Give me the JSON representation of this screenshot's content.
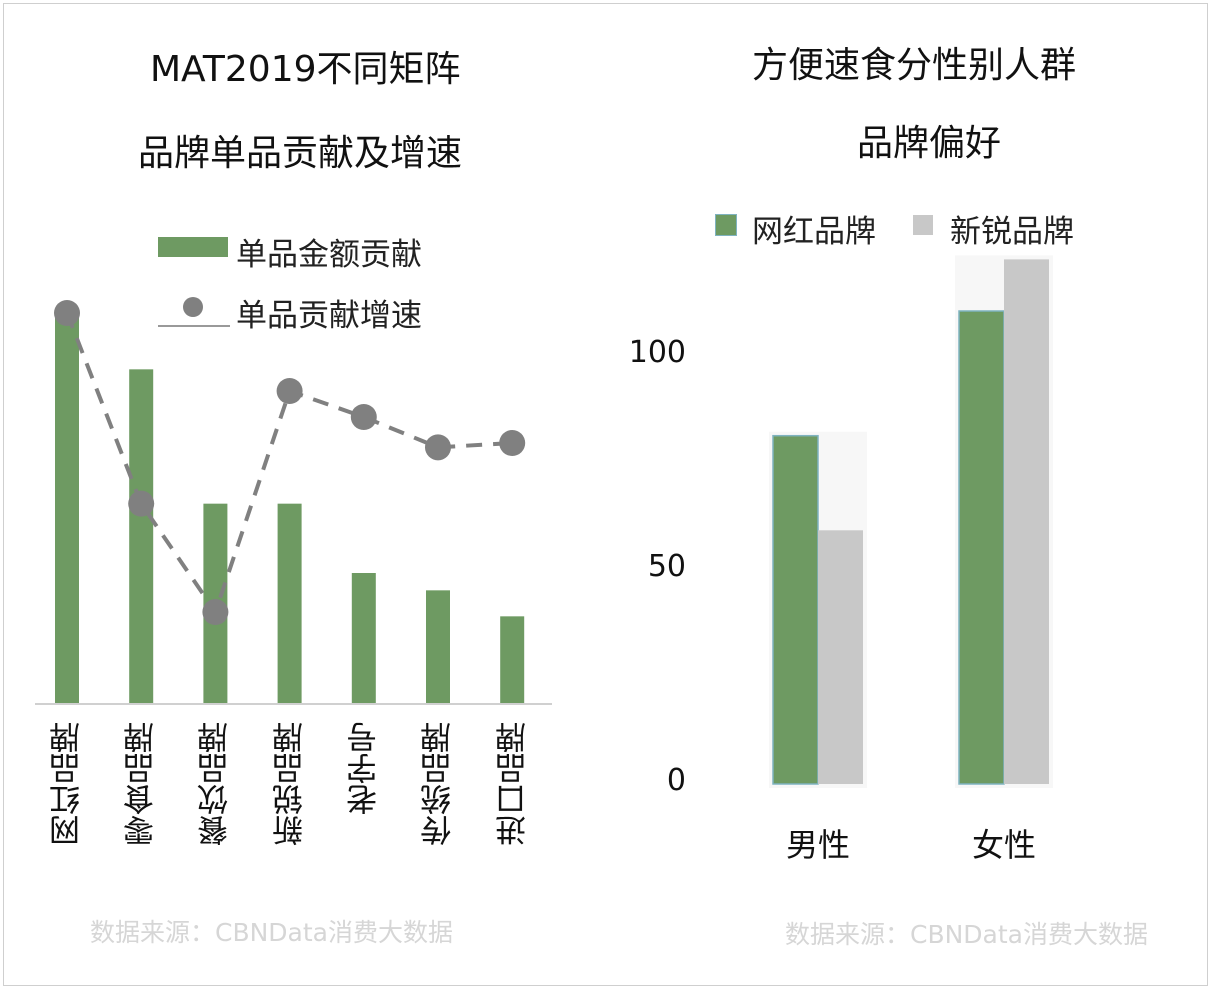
{
  "colors": {
    "green": "#6e9a62",
    "gray": "#c8c8c8",
    "dot": "#808080",
    "axis": "#d0d0d0"
  },
  "chart_data": [
    {
      "type": "bar",
      "title_line1": "MAT2019不同矩阵",
      "title_line2": "品牌单品贡献及增速",
      "categories": [
        "网红品牌",
        "零食品牌",
        "餐饮品牌",
        "新锐品牌",
        "老字号",
        "传统品牌",
        "进口品牌"
      ],
      "series": [
        {
          "name": "单品金额贡献",
          "type": "bar",
          "values": [
            90,
            77,
            46,
            46,
            30,
            26,
            20
          ]
        },
        {
          "name": "单品贡献增速",
          "type": "line-dashed-markers",
          "values": [
            90,
            46,
            21,
            72,
            66,
            59,
            60
          ]
        }
      ],
      "ylim": [
        0,
        90
      ],
      "y_axis_visible": false,
      "legend": [
        "单品金额贡献",
        "单品贡献增速"
      ],
      "legend_position": "top",
      "source": "数据来源：CBNData消费大数据"
    },
    {
      "type": "bar",
      "title_line1": "方便速食分性别人群",
      "title_line2": "品牌偏好",
      "categories": [
        "男性",
        "女性"
      ],
      "series": [
        {
          "name": "网红品牌",
          "values": [
            81,
            110
          ]
        },
        {
          "name": "新锐品牌",
          "values": [
            59,
            122
          ]
        }
      ],
      "yticks": [
        "100",
        "50",
        "0"
      ],
      "ytick_values": [
        100,
        50,
        0
      ],
      "ylim": [
        0,
        122
      ],
      "legend": [
        "网红品牌",
        "新锐品牌"
      ],
      "legend_position": "top",
      "source": "数据来源：CBNData消费大数据"
    }
  ]
}
